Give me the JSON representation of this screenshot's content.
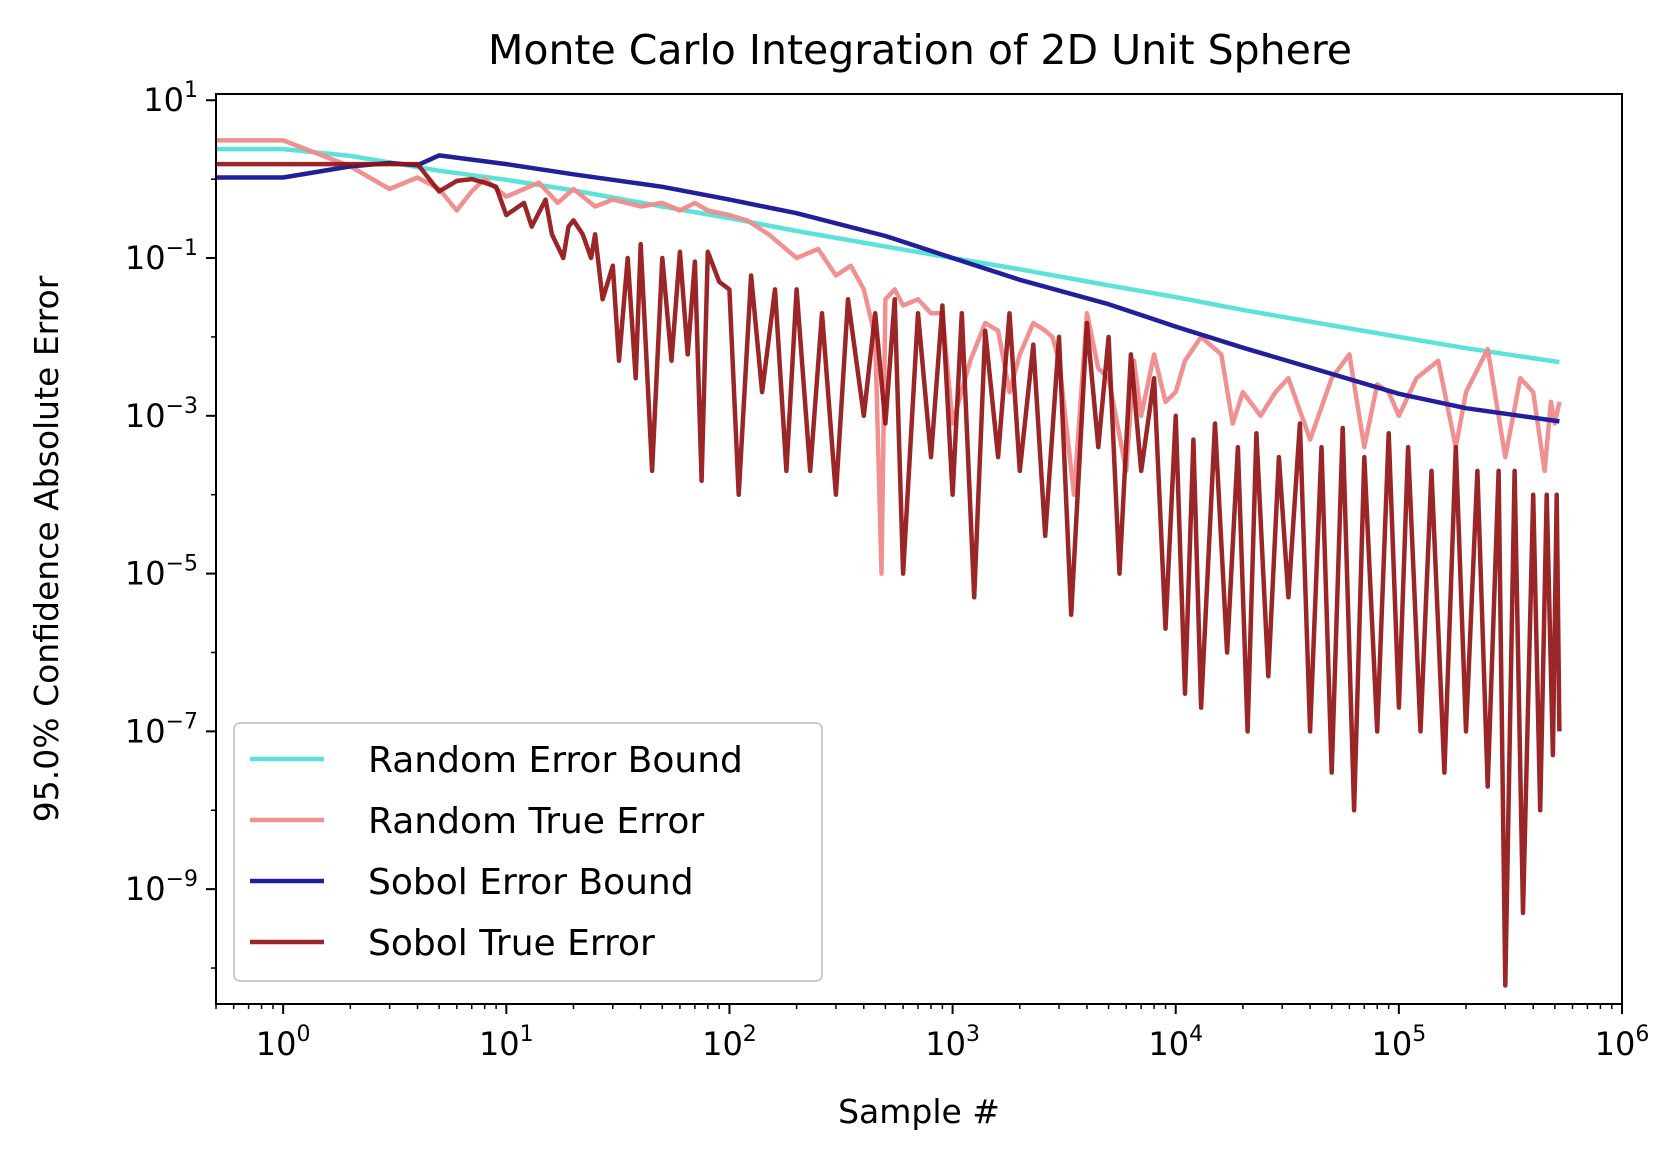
{
  "chart_data": {
    "type": "line",
    "title": "Monte Carlo Integration of 2D Unit Sphere",
    "xlabel": "Sample #",
    "ylabel": "95.0% Confidence Absolute Error",
    "xscale": "log",
    "yscale": "log",
    "xlim": [
      0.5,
      1000000
    ],
    "ylim": [
      3.5e-11,
      12
    ],
    "x_ticks": [
      {
        "base": "10",
        "exp": "0",
        "value": 1
      },
      {
        "base": "10",
        "exp": "1",
        "value": 10
      },
      {
        "base": "10",
        "exp": "2",
        "value": 100
      },
      {
        "base": "10",
        "exp": "3",
        "value": 1000
      },
      {
        "base": "10",
        "exp": "4",
        "value": 10000
      },
      {
        "base": "10",
        "exp": "5",
        "value": 100000
      },
      {
        "base": "10",
        "exp": "6",
        "value": 1000000
      }
    ],
    "y_ticks": [
      {
        "base": "10",
        "exp": "1",
        "value": 10
      },
      {
        "base": "10",
        "exp": "−1",
        "value": 0.1
      },
      {
        "base": "10",
        "exp": "−3",
        "value": 0.001
      },
      {
        "base": "10",
        "exp": "−5",
        "value": 1e-05
      },
      {
        "base": "10",
        "exp": "−7",
        "value": 1e-07
      },
      {
        "base": "10",
        "exp": "−9",
        "value": 1e-09
      }
    ],
    "legend_position": "lower-left",
    "grid": false,
    "series": [
      {
        "name": "Random Error Bound",
        "color": "#5de2d9",
        "opacity": 1,
        "x": [
          0.5,
          1,
          2,
          5,
          10,
          20,
          50,
          100,
          200,
          500,
          1000,
          2000,
          5000,
          10000,
          20000,
          50000,
          100000,
          200000,
          524288
        ],
        "y": [
          2.4,
          2.4,
          1.97,
          1.28,
          0.98,
          0.72,
          0.45,
          0.32,
          0.22,
          0.14,
          0.1,
          0.072,
          0.045,
          0.032,
          0.022,
          0.014,
          0.01,
          0.0072,
          0.0048
        ]
      },
      {
        "name": "Random True Error",
        "color": "#f08a8a",
        "opacity": 0.95,
        "x": [
          0.5,
          1,
          2,
          3,
          4,
          5,
          6,
          7,
          8,
          10,
          14,
          17,
          20,
          25,
          30,
          40,
          50,
          60,
          70,
          80,
          100,
          120,
          150,
          200,
          250,
          300,
          350,
          400,
          450,
          480,
          500,
          550,
          600,
          700,
          800,
          900,
          1000,
          1200,
          1400,
          1600,
          1800,
          2000,
          2300,
          2600,
          2800,
          3000,
          3500,
          4000,
          4500,
          5000,
          6000,
          6500,
          7000,
          8000,
          9000,
          10000,
          11000,
          13000,
          16000,
          18000,
          20000,
          24000,
          28000,
          32000,
          40000,
          50000,
          60000,
          70000,
          80000,
          90000,
          100000,
          120000,
          150000,
          180000,
          200000,
          250000,
          300000,
          350000,
          400000,
          450000,
          480000,
          500000,
          524288
        ],
        "y": [
          3.1,
          3.1,
          1.45,
          0.75,
          1.05,
          0.75,
          0.4,
          0.7,
          1.0,
          0.6,
          0.9,
          0.5,
          0.75,
          0.45,
          0.55,
          0.45,
          0.5,
          0.4,
          0.5,
          0.4,
          0.35,
          0.3,
          0.2,
          0.1,
          0.13,
          0.06,
          0.08,
          0.04,
          0.01,
          1e-05,
          0.03,
          0.04,
          0.025,
          0.03,
          0.02,
          0.02,
          0.0008,
          0.005,
          0.015,
          0.012,
          0.002,
          0.006,
          0.015,
          0.012,
          0.01,
          0.005,
          0.0001,
          0.02,
          0.004,
          0.003,
          0.0002,
          0.005,
          0.001,
          0.006,
          0.0015,
          0.002,
          0.005,
          0.01,
          0.006,
          0.0008,
          0.002,
          0.001,
          0.002,
          0.003,
          0.0005,
          0.003,
          0.006,
          0.0004,
          0.0025,
          0.002,
          0.001,
          0.003,
          0.005,
          0.0004,
          0.002,
          0.007,
          0.0003,
          0.003,
          0.002,
          0.0002,
          0.0015,
          0.0008,
          0.0015
        ]
      },
      {
        "name": "Sobol Error Bound",
        "color": "#21209a",
        "opacity": 1,
        "x": [
          0.5,
          1,
          2,
          3,
          4,
          5,
          10,
          20,
          50,
          100,
          200,
          500,
          1000,
          2000,
          5000,
          10000,
          20000,
          50000,
          100000,
          200000,
          524288
        ],
        "y": [
          1.05,
          1.05,
          1.45,
          1.6,
          1.5,
          2.0,
          1.55,
          1.15,
          0.8,
          0.55,
          0.37,
          0.19,
          0.1,
          0.053,
          0.026,
          0.0135,
          0.0073,
          0.0034,
          0.0019,
          0.00125,
          0.00085
        ]
      },
      {
        "name": "Sobol True Error",
        "color": "#911416",
        "opacity": 0.92,
        "x": [
          0.5,
          1,
          2,
          3,
          4,
          5,
          6,
          7,
          8,
          9,
          10,
          12,
          13,
          15,
          16,
          18,
          19,
          20,
          22,
          24,
          25,
          27,
          30,
          32,
          35,
          38,
          40,
          45,
          50,
          55,
          60,
          65,
          70,
          75,
          80,
          90,
          100,
          110,
          125,
          140,
          160,
          180,
          200,
          230,
          260,
          300,
          340,
          400,
          450,
          500,
          550,
          600,
          700,
          800,
          900,
          1000,
          1100,
          1250,
          1400,
          1600,
          1800,
          2000,
          2300,
          2600,
          3000,
          3400,
          4000,
          4500,
          5000,
          5600,
          6300,
          7000,
          8000,
          9000,
          10000,
          11000,
          12000,
          13000,
          15000,
          17000,
          19000,
          21000,
          23000,
          26000,
          29000,
          32000,
          36000,
          40000,
          45000,
          50000,
          56000,
          63000,
          70000,
          80000,
          90000,
          100000,
          110000,
          125000,
          140000,
          160000,
          180000,
          200000,
          225000,
          250000,
          280000,
          300000,
          330000,
          360000,
          400000,
          430000,
          460000,
          490000,
          510000,
          524288
        ],
        "y": [
          1.55,
          1.55,
          1.55,
          1.55,
          1.55,
          0.7,
          0.95,
          1.0,
          0.9,
          0.8,
          0.35,
          0.5,
          0.25,
          0.55,
          0.2,
          0.1,
          0.25,
          0.3,
          0.2,
          0.1,
          0.2,
          0.03,
          0.08,
          0.005,
          0.1,
          0.003,
          0.15,
          0.0002,
          0.1,
          0.005,
          0.12,
          0.006,
          0.09,
          0.00015,
          0.12,
          0.05,
          0.04,
          0.0001,
          0.06,
          0.002,
          0.04,
          0.0002,
          0.04,
          0.0002,
          0.02,
          0.0001,
          0.03,
          0.001,
          0.02,
          0.0008,
          0.03,
          1e-05,
          0.02,
          0.0003,
          0.025,
          0.0001,
          0.02,
          5e-06,
          0.012,
          0.0003,
          0.02,
          0.0002,
          0.008,
          3e-05,
          0.01,
          3e-06,
          0.015,
          0.0004,
          0.01,
          1e-05,
          0.006,
          0.0002,
          0.003,
          2e-06,
          0.001,
          3e-07,
          0.0005,
          2e-07,
          0.0008,
          1e-06,
          0.0004,
          1e-07,
          0.0006,
          5e-07,
          0.0003,
          5e-06,
          0.0008,
          1e-07,
          0.0004,
          3e-08,
          0.0007,
          1e-08,
          0.0003,
          1e-07,
          0.0006,
          2e-07,
          0.0004,
          1e-07,
          0.0002,
          3e-08,
          0.0004,
          1e-07,
          0.0002,
          2e-08,
          0.0002,
          6e-11,
          0.0002,
          5e-10,
          0.0001,
          1e-08,
          0.0001,
          5e-08,
          0.0001,
          1e-07
        ]
      }
    ]
  }
}
